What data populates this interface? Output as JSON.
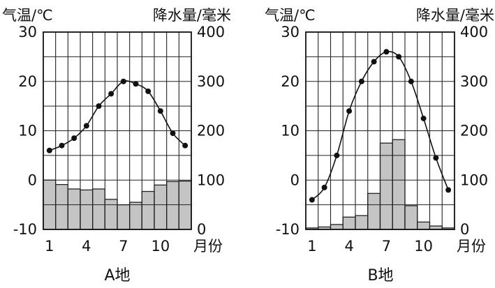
{
  "chart_data": [
    {
      "type": "climate",
      "caption": "A地",
      "left_axis_label": "气温/℃",
      "right_axis_label": "降水量/毫米",
      "x_label": "月份",
      "x_ticks": [
        "1",
        "4",
        "7",
        "10"
      ],
      "temp_ticks": [
        "30",
        "20",
        "10",
        "0",
        "-10"
      ],
      "precip_ticks": [
        "400",
        "300",
        "200",
        "100",
        "0"
      ],
      "temp_range": [
        -10,
        30
      ],
      "precip_range": [
        0,
        400
      ],
      "months": [
        1,
        2,
        3,
        4,
        5,
        6,
        7,
        8,
        9,
        10,
        11,
        12
      ],
      "temperature": [
        6,
        7,
        8.5,
        11,
        15,
        17.5,
        20,
        19.5,
        18,
        14,
        9.5,
        7
      ],
      "precipitation": [
        100,
        91,
        82,
        80,
        82,
        61,
        50,
        55,
        77,
        90,
        97,
        98
      ]
    },
    {
      "type": "climate",
      "caption": "B地",
      "left_axis_label": "气温/℃",
      "right_axis_label": "降水量/毫米",
      "x_label": "月份",
      "x_ticks": [
        "1",
        "4",
        "7",
        "10"
      ],
      "temp_ticks": [
        "30",
        "20",
        "10",
        "0",
        "-10"
      ],
      "precip_ticks": [
        "400",
        "300",
        "200",
        "100",
        "0"
      ],
      "temp_range": [
        -10,
        30
      ],
      "precip_range": [
        0,
        400
      ],
      "months": [
        1,
        2,
        3,
        4,
        5,
        6,
        7,
        8,
        9,
        10,
        11,
        12
      ],
      "temperature": [
        -4,
        -1.5,
        5,
        14,
        20,
        24,
        26,
        25,
        20,
        12.5,
        4.5,
        -2
      ],
      "precipitation": [
        3,
        5,
        10,
        25,
        28,
        73,
        175,
        182,
        48,
        15,
        7,
        3
      ]
    }
  ]
}
